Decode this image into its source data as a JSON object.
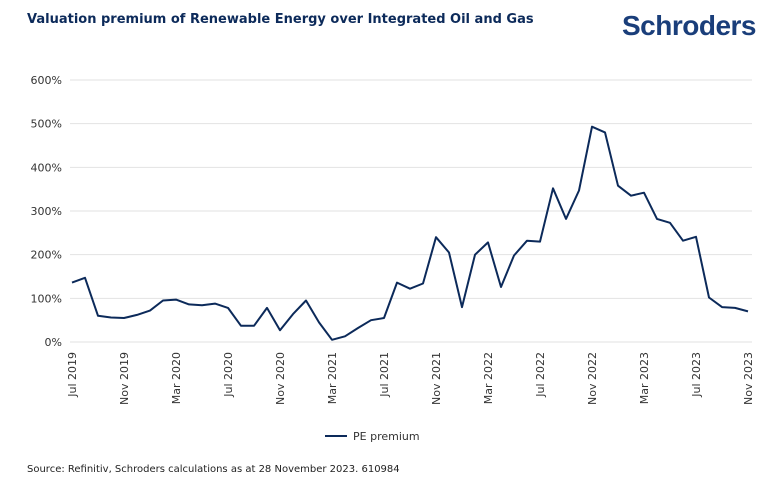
{
  "header": {
    "title": "Valuation premium of Renewable Energy over Integrated Oil and Gas",
    "logo": "Schroders"
  },
  "footer": {
    "source": "Source: Refinitiv, Schroders calculations as at 28 November 2023. 610984"
  },
  "chart_data": {
    "type": "line",
    "title": "Valuation premium of Renewable Energy over Integrated Oil and Gas",
    "xlabel": "",
    "ylabel": "",
    "ylim": [
      0,
      600
    ],
    "yticks": [
      "0%",
      "100%",
      "200%",
      "300%",
      "400%",
      "500%",
      "600%"
    ],
    "xticks": [
      "Jul 2019",
      "Nov 2019",
      "Mar 2020",
      "Jul 2020",
      "Nov 2020",
      "Mar 2021",
      "Jul 2021",
      "Nov 2021",
      "Mar 2022",
      "Jul 2022",
      "Nov 2022",
      "Mar 2023",
      "Jul 2023",
      "Nov 2023"
    ],
    "grid": true,
    "legend": "bottom",
    "color": "#0c2a5a",
    "x_start": "Jul 2019",
    "x_frequency": "monthly",
    "series": [
      {
        "name": "PE premium",
        "values": [
          136,
          147,
          60,
          56,
          55,
          62,
          72,
          95,
          97,
          86,
          84,
          88,
          78,
          37,
          37,
          78,
          27,
          64,
          95,
          45,
          5,
          13,
          32,
          50,
          55,
          136,
          122,
          134,
          240,
          205,
          80,
          200,
          228,
          126,
          198,
          232,
          230,
          352,
          282,
          347,
          493,
          480,
          358,
          335,
          342,
          282,
          273,
          232,
          241,
          102,
          80,
          78,
          70
        ]
      }
    ]
  }
}
